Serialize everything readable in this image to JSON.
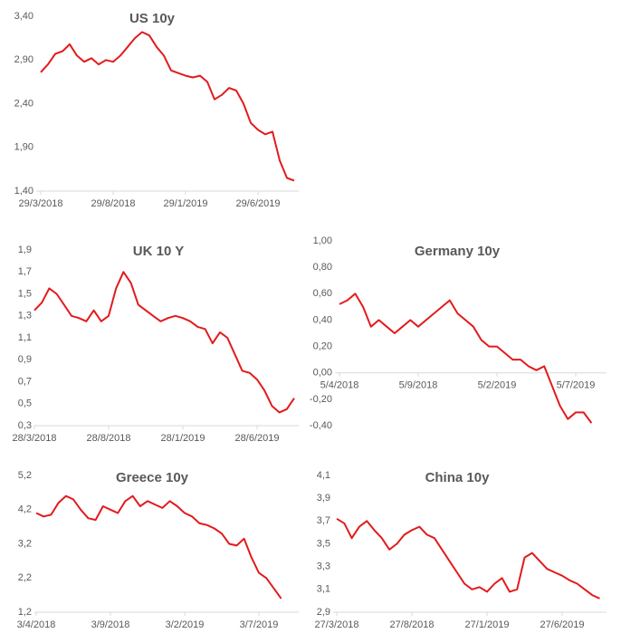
{
  "chart_data": [
    {
      "type": "line",
      "title": "US 10y",
      "color": "#e31a1c",
      "categories": [
        "29/3/2018",
        null,
        null,
        null,
        null,
        null,
        null,
        null,
        null,
        null,
        "29/8/2018",
        null,
        null,
        null,
        null,
        null,
        null,
        null,
        null,
        null,
        "29/1/2019",
        null,
        null,
        null,
        null,
        null,
        null,
        null,
        null,
        null,
        "29/6/2019",
        null,
        null,
        null,
        null,
        null
      ],
      "values": [
        2.76,
        2.85,
        2.97,
        3.0,
        3.08,
        2.95,
        2.88,
        2.92,
        2.85,
        2.9,
        2.88,
        2.95,
        3.05,
        3.15,
        3.22,
        3.18,
        3.05,
        2.95,
        2.78,
        2.75,
        2.72,
        2.7,
        2.72,
        2.65,
        2.45,
        2.5,
        2.58,
        2.55,
        2.4,
        2.18,
        2.1,
        2.05,
        2.08,
        1.75,
        1.55,
        1.52
      ],
      "ylim": [
        1.4,
        3.4
      ],
      "yticks": [
        {
          "value": 1.4,
          "label": "1,40"
        },
        {
          "value": 1.9,
          "label": "1,90"
        },
        {
          "value": 2.4,
          "label": "2,40"
        },
        {
          "value": 2.9,
          "label": "2,90"
        },
        {
          "value": 3.4,
          "label": "3,40"
        }
      ]
    },
    {
      "type": "line",
      "title": "UK 10 Y",
      "color": "#e31a1c",
      "categories": [
        "28/3/2018",
        null,
        null,
        null,
        null,
        null,
        null,
        null,
        null,
        null,
        "28/8/2018",
        null,
        null,
        null,
        null,
        null,
        null,
        null,
        null,
        null,
        "28/1/2019",
        null,
        null,
        null,
        null,
        null,
        null,
        null,
        null,
        null,
        "28/6/2019",
        null,
        null,
        null,
        null,
        null
      ],
      "values": [
        1.35,
        1.42,
        1.55,
        1.5,
        1.4,
        1.3,
        1.28,
        1.25,
        1.35,
        1.25,
        1.3,
        1.55,
        1.7,
        1.6,
        1.4,
        1.35,
        1.3,
        1.25,
        1.28,
        1.3,
        1.28,
        1.25,
        1.2,
        1.18,
        1.05,
        1.15,
        1.1,
        0.95,
        0.8,
        0.78,
        0.72,
        0.62,
        0.48,
        0.42,
        0.45,
        0.55
      ],
      "ylim": [
        0.3,
        1.9
      ],
      "yticks": [
        {
          "value": 0.3,
          "label": "0,3"
        },
        {
          "value": 0.5,
          "label": "0,5"
        },
        {
          "value": 0.7,
          "label": "0,7"
        },
        {
          "value": 0.9,
          "label": "0,9"
        },
        {
          "value": 1.1,
          "label": "1,1"
        },
        {
          "value": 1.3,
          "label": "1,3"
        },
        {
          "value": 1.5,
          "label": "1,5"
        },
        {
          "value": 1.7,
          "label": "1,7"
        },
        {
          "value": 1.9,
          "label": "1,9"
        }
      ]
    },
    {
      "type": "line",
      "title": "Germany 10y",
      "color": "#e31a1c",
      "categories": [
        "5/4/2018",
        null,
        null,
        null,
        null,
        null,
        null,
        null,
        null,
        null,
        "5/9/2018",
        null,
        null,
        null,
        null,
        null,
        null,
        null,
        null,
        null,
        "5/2/2019",
        null,
        null,
        null,
        null,
        null,
        null,
        null,
        null,
        null,
        "5/7/2019",
        null,
        null
      ],
      "values": [
        0.52,
        0.55,
        0.6,
        0.5,
        0.35,
        0.4,
        0.35,
        0.3,
        0.35,
        0.4,
        0.35,
        0.4,
        0.45,
        0.5,
        0.55,
        0.45,
        0.4,
        0.35,
        0.25,
        0.2,
        0.2,
        0.15,
        0.1,
        0.1,
        0.05,
        0.02,
        0.05,
        -0.1,
        -0.25,
        -0.35,
        -0.3,
        -0.3,
        -0.38
      ],
      "ylim": [
        -0.4,
        1.0
      ],
      "yticks": [
        {
          "value": -0.4,
          "label": "-0,40"
        },
        {
          "value": -0.2,
          "label": "-0,20"
        },
        {
          "value": 0,
          "label": "0,00"
        },
        {
          "value": 0.2,
          "label": "0,20"
        },
        {
          "value": 0.4,
          "label": "0,40"
        },
        {
          "value": 0.6,
          "label": "0,60"
        },
        {
          "value": 0.8,
          "label": "0,80"
        },
        {
          "value": 1.0,
          "label": "1,00"
        }
      ]
    },
    {
      "type": "line",
      "title": "Greece 10y",
      "color": "#e31a1c",
      "categories": [
        "3/4/2018",
        null,
        null,
        null,
        null,
        null,
        null,
        null,
        null,
        null,
        "3/9/2018",
        null,
        null,
        null,
        null,
        null,
        null,
        null,
        null,
        null,
        "3/2/2019",
        null,
        null,
        null,
        null,
        null,
        null,
        null,
        null,
        null,
        "3/7/2019",
        null,
        null,
        null
      ],
      "values": [
        4.1,
        4.0,
        4.05,
        4.4,
        4.6,
        4.5,
        4.2,
        3.95,
        3.9,
        4.3,
        4.2,
        4.1,
        4.45,
        4.6,
        4.3,
        4.45,
        4.35,
        4.25,
        4.45,
        4.3,
        4.1,
        4.0,
        3.8,
        3.75,
        3.65,
        3.5,
        3.2,
        3.15,
        3.35,
        2.8,
        2.35,
        2.2,
        1.9,
        1.6
      ],
      "ylim": [
        1.2,
        5.2
      ],
      "yticks": [
        {
          "value": 1.2,
          "label": "1,2"
        },
        {
          "value": 2.2,
          "label": "2,2"
        },
        {
          "value": 3.2,
          "label": "3,2"
        },
        {
          "value": 4.2,
          "label": "4,2"
        },
        {
          "value": 5.2,
          "label": "5,2"
        }
      ]
    },
    {
      "type": "line",
      "title": "China 10y",
      "color": "#e31a1c",
      "categories": [
        "27/3/2018",
        null,
        null,
        null,
        null,
        null,
        null,
        null,
        null,
        null,
        "27/8/2018",
        null,
        null,
        null,
        null,
        null,
        null,
        null,
        null,
        null,
        "27/1/2019",
        null,
        null,
        null,
        null,
        null,
        null,
        null,
        null,
        null,
        "27/6/2019",
        null,
        null,
        null,
        null,
        null
      ],
      "values": [
        3.72,
        3.68,
        3.55,
        3.65,
        3.7,
        3.62,
        3.55,
        3.45,
        3.5,
        3.58,
        3.62,
        3.65,
        3.58,
        3.55,
        3.45,
        3.35,
        3.25,
        3.15,
        3.1,
        3.12,
        3.08,
        3.15,
        3.2,
        3.08,
        3.1,
        3.38,
        3.42,
        3.35,
        3.28,
        3.25,
        3.22,
        3.18,
        3.15,
        3.1,
        3.05,
        3.02
      ],
      "ylim": [
        2.9,
        4.1
      ],
      "yticks": [
        {
          "value": 2.9,
          "label": "2,9"
        },
        {
          "value": 3.1,
          "label": "3,1"
        },
        {
          "value": 3.3,
          "label": "3,3"
        },
        {
          "value": 3.5,
          "label": "3,5"
        },
        {
          "value": 3.7,
          "label": "3,7"
        },
        {
          "value": 3.9,
          "label": "3,9"
        },
        {
          "value": 4.1,
          "label": "4,1"
        }
      ]
    }
  ]
}
